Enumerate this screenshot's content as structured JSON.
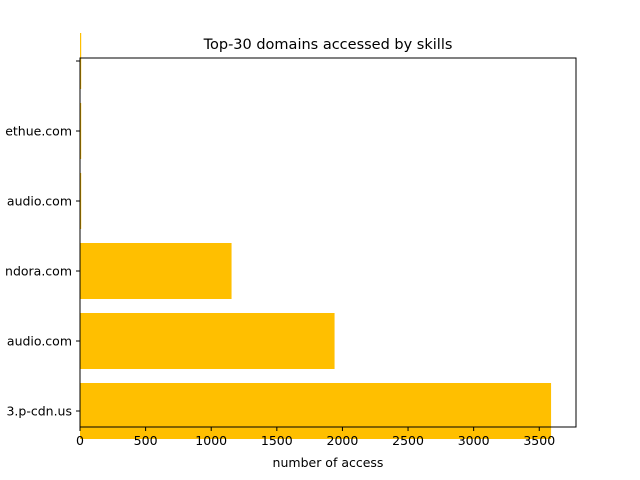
{
  "chart_data": {
    "type": "bar",
    "orientation": "horizontal",
    "title": "Top-30 domains accessed by skills",
    "xlabel": "number of access",
    "ylabel": "",
    "categories": [
      "3.p-cdn.us",
      "audio.com",
      "ndora.com",
      "audio.com",
      "ethue.com",
      ""
    ],
    "values": [
      3590,
      1940,
      1155,
      8,
      6,
      4
    ],
    "xlim": [
      0,
      3780
    ],
    "xticks": [
      0,
      500,
      1000,
      1500,
      2000,
      2500,
      3000,
      3500
    ],
    "bar_color": "#ffbf00",
    "grid": false,
    "legend": "none"
  }
}
